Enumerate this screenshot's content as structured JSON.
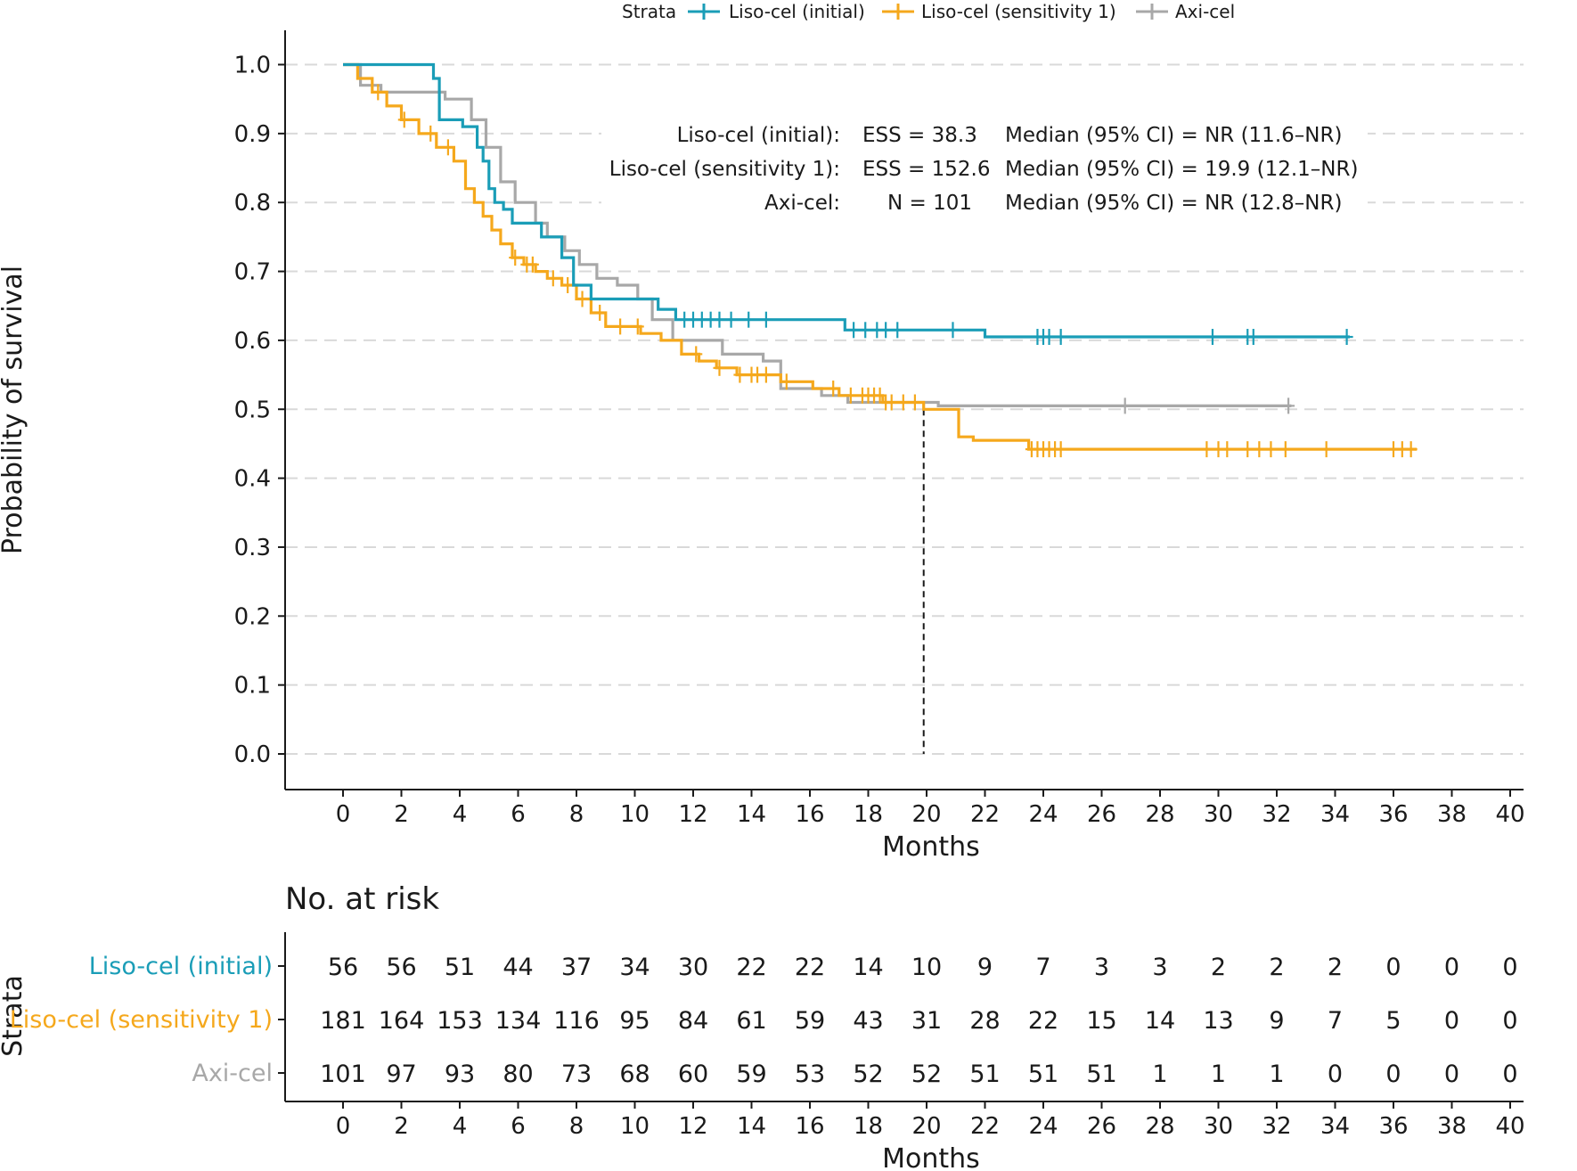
{
  "legend": {
    "title": "Strata",
    "entries": [
      "Liso-cel (initial)",
      "Liso-cel (sensitivity 1)",
      "Axi-cel"
    ]
  },
  "colors": {
    "initial": "#1a9db7",
    "sensitivity": "#f5a81c",
    "axicel": "#a8a8a8",
    "axis": "#1a1a1a",
    "grid": "#d9d9d9"
  },
  "annotations": {
    "rows": [
      {
        "name": "Liso-cel (initial):",
        "ess": "ESS = 38.3",
        "median": "Median (95% CI) = NR (11.6–NR)"
      },
      {
        "name": "Liso-cel (sensitivity 1):",
        "ess": "ESS = 152.6",
        "median": "Median (95% CI) = 19.9 (12.1–NR)"
      },
      {
        "name": "Axi-cel:",
        "ess": "N = 101",
        "median": "Median (95% CI) = NR (12.8–NR)"
      }
    ]
  },
  "risk_table": {
    "title": "No. at risk",
    "strata_label": "Strata",
    "xlabel": "Months",
    "rows": [
      {
        "label": "Liso-cel (initial)",
        "values": [
          "56",
          "56",
          "51",
          "44",
          "37",
          "34",
          "30",
          "22",
          "22",
          "14",
          "10",
          "9",
          "7",
          "3",
          "3",
          "2",
          "2",
          "2",
          "0",
          "0",
          "0"
        ]
      },
      {
        "label": "Liso-cel (sensitivity 1)",
        "values": [
          "181",
          "164",
          "153",
          "134",
          "116",
          "95",
          "84",
          "61",
          "59",
          "43",
          "31",
          "28",
          "22",
          "15",
          "14",
          "13",
          "9",
          "7",
          "5",
          "0",
          "0"
        ]
      },
      {
        "label": "Axi-cel",
        "values": [
          "101",
          "97",
          "93",
          "80",
          "73",
          "68",
          "60",
          "59",
          "53",
          "52",
          "52",
          "51",
          "51",
          "51",
          "1",
          "1",
          "1",
          "0",
          "0",
          "0",
          "0"
        ]
      }
    ]
  },
  "chart_data": {
    "type": "line",
    "title": "",
    "xlabel": "Months",
    "ylabel": "Probability of survival",
    "xlim": [
      0,
      40
    ],
    "ylim": [
      0,
      1
    ],
    "xticks": [
      "0",
      "2",
      "4",
      "6",
      "8",
      "10",
      "12",
      "14",
      "16",
      "18",
      "20",
      "22",
      "24",
      "26",
      "28",
      "30",
      "32",
      "34",
      "36",
      "38",
      "40"
    ],
    "yticks": [
      "0.0",
      "0.1",
      "0.2",
      "0.3",
      "0.4",
      "0.5",
      "0.6",
      "0.7",
      "0.8",
      "0.9",
      "1.0"
    ],
    "grid": "horizontal dashed",
    "median_marker": {
      "x": 19.9,
      "y": 0.5
    },
    "series": [
      {
        "name": "Liso-cel (initial)",
        "color_key": "initial",
        "x": [
          0,
          2.8,
          3.1,
          3.3,
          3.7,
          4.1,
          4.6,
          4.8,
          5.0,
          5.2,
          5.5,
          5.8,
          6.2,
          6.8,
          7.5,
          7.9,
          8.5,
          9.0,
          10.8,
          11.4,
          17.2,
          22.0,
          34.5
        ],
        "y": [
          1.0,
          1.0,
          0.98,
          0.92,
          0.92,
          0.91,
          0.88,
          0.86,
          0.82,
          0.8,
          0.79,
          0.77,
          0.77,
          0.75,
          0.72,
          0.68,
          0.66,
          0.66,
          0.645,
          0.63,
          0.615,
          0.605,
          0.605
        ],
        "censors": [
          11.7,
          12.0,
          12.3,
          12.6,
          12.9,
          13.3,
          13.9,
          14.5,
          17.5,
          17.9,
          18.3,
          18.6,
          19.0,
          20.9,
          23.8,
          24.0,
          24.2,
          24.6,
          29.8,
          31.0,
          31.2,
          34.4
        ]
      },
      {
        "name": "Liso-cel (sensitivity 1)",
        "color_key": "sensitivity",
        "x": [
          0,
          0.5,
          1.0,
          1.5,
          2.0,
          2.6,
          3.2,
          3.8,
          4.2,
          4.5,
          4.8,
          5.1,
          5.4,
          5.8,
          6.2,
          6.6,
          7.0,
          7.5,
          8.0,
          8.5,
          9.0,
          10.2,
          10.9,
          11.6,
          12.2,
          12.8,
          13.5,
          15.0,
          16.1,
          17.0,
          18.5,
          19.9,
          21.1,
          21.6,
          23.5,
          36.8
        ],
        "y": [
          1.0,
          0.98,
          0.96,
          0.94,
          0.92,
          0.9,
          0.88,
          0.86,
          0.82,
          0.8,
          0.78,
          0.76,
          0.74,
          0.72,
          0.71,
          0.7,
          0.69,
          0.68,
          0.66,
          0.64,
          0.62,
          0.61,
          0.6,
          0.58,
          0.57,
          0.56,
          0.55,
          0.54,
          0.53,
          0.52,
          0.51,
          0.5,
          0.46,
          0.455,
          0.442,
          0.442
        ],
        "censors": [
          1.2,
          2.1,
          3.0,
          3.6,
          5.9,
          6.3,
          6.5,
          7.2,
          7.7,
          8.2,
          8.8,
          9.5,
          10.1,
          12.1,
          12.9,
          13.6,
          14.0,
          14.2,
          14.5,
          15.2,
          16.8,
          17.4,
          17.8,
          18.0,
          18.2,
          18.4,
          18.6,
          18.8,
          19.2,
          19.6,
          23.6,
          23.8,
          24.0,
          24.2,
          24.4,
          24.6,
          29.6,
          30.0,
          30.3,
          31.0,
          31.4,
          31.8,
          32.3,
          33.7,
          36.0,
          36.3,
          36.6
        ]
      },
      {
        "name": "Axi-cel",
        "color_key": "axicel",
        "x": [
          0,
          0.6,
          1.3,
          2.5,
          3.5,
          4.4,
          4.9,
          5.4,
          5.9,
          6.6,
          7.0,
          7.6,
          8.1,
          8.7,
          9.4,
          10.1,
          10.6,
          11.3,
          13.0,
          14.4,
          15.0,
          16.4,
          17.3,
          19.8,
          20.4,
          32.5
        ],
        "y": [
          1.0,
          0.97,
          0.96,
          0.96,
          0.95,
          0.92,
          0.88,
          0.83,
          0.8,
          0.77,
          0.75,
          0.73,
          0.71,
          0.69,
          0.68,
          0.66,
          0.63,
          0.6,
          0.58,
          0.57,
          0.53,
          0.52,
          0.51,
          0.51,
          0.505,
          0.505
        ],
        "censors": [
          26.8,
          32.4
        ]
      }
    ]
  }
}
